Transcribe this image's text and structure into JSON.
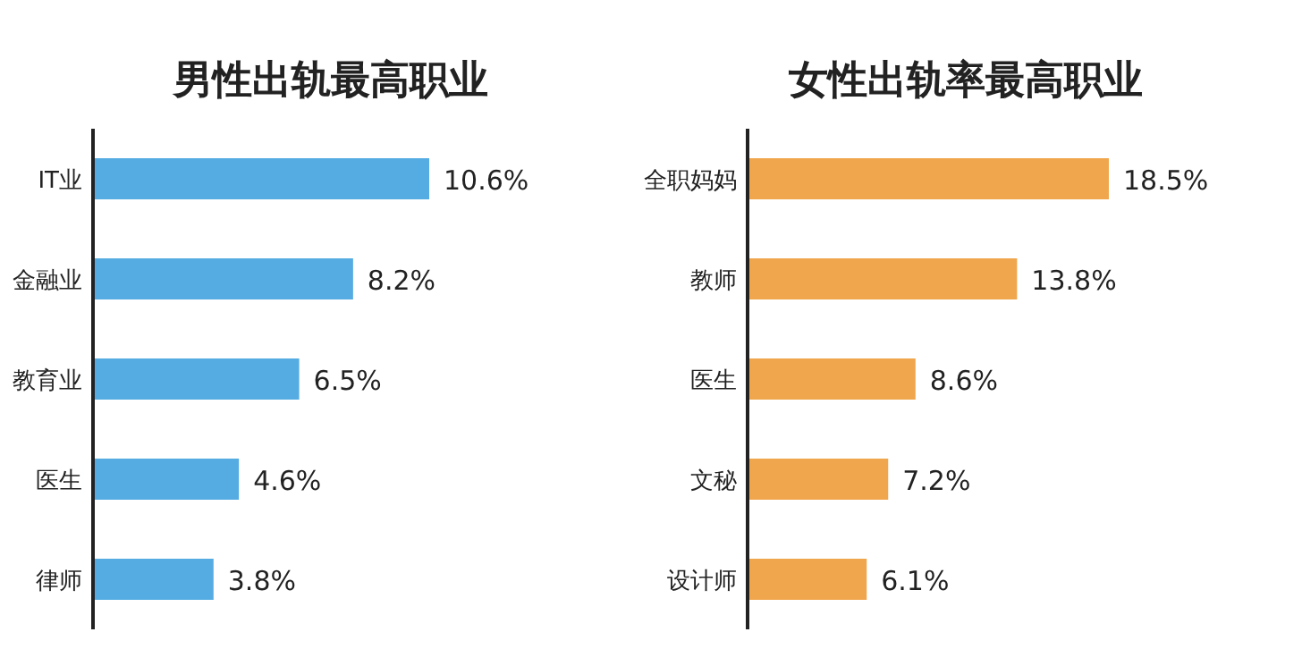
{
  "chart_data": [
    {
      "type": "bar",
      "orientation": "horizontal",
      "title": "男性出轨最高职业",
      "categories": [
        "IT业",
        "金融业",
        "教育业",
        "医生",
        "律师"
      ],
      "values": [
        10.6,
        8.2,
        6.5,
        4.6,
        3.8
      ],
      "value_labels": [
        "10.6%",
        "8.2%",
        "6.5%",
        "4.6%",
        "3.8%"
      ],
      "color": "#55ace2"
    },
    {
      "type": "bar",
      "orientation": "horizontal",
      "title": "女性出轨率最高职业",
      "categories": [
        "全职妈妈",
        "教师",
        "医生",
        "文秘",
        "设计师"
      ],
      "values": [
        18.5,
        13.8,
        8.6,
        7.2,
        6.1
      ],
      "value_labels": [
        "18.5%",
        "13.8%",
        "8.6%",
        "7.2%",
        "6.1%"
      ],
      "color": "#f0a64c"
    }
  ]
}
